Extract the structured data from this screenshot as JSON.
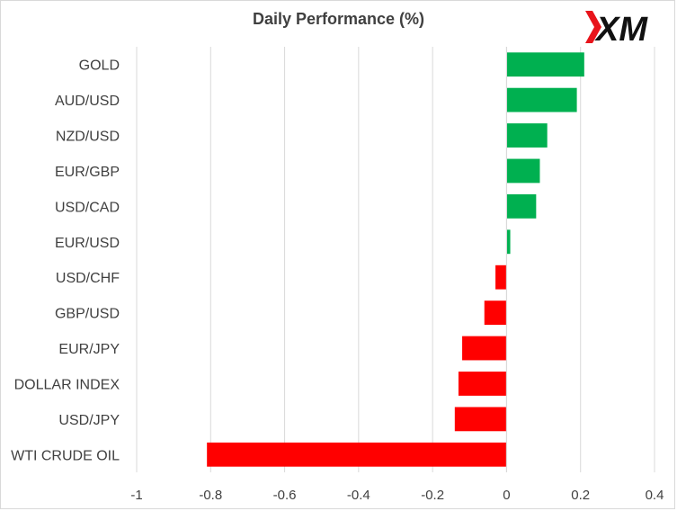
{
  "chart_data": {
    "type": "bar",
    "orientation": "horizontal",
    "title": "Daily Performance  (%)",
    "categories": [
      "GOLD",
      "AUD/USD",
      "NZD/USD",
      "EUR/GBP",
      "USD/CAD",
      "EUR/USD",
      "USD/CHF",
      "GBP/USD",
      "EUR/JPY",
      "DOLLAR INDEX",
      "USD/JPY",
      "WTI CRUDE OIL"
    ],
    "values": [
      0.21,
      0.19,
      0.11,
      0.09,
      0.08,
      0.01,
      -0.03,
      -0.06,
      -0.12,
      -0.13,
      -0.14,
      -0.81
    ],
    "xlim": [
      -1,
      0.4
    ],
    "xticks": [
      -1,
      -0.8,
      -0.6,
      -0.4,
      -0.2,
      0,
      0.2,
      0.4
    ],
    "xtick_labels": [
      "-1",
      "-0.8",
      "-0.6",
      "-0.4",
      "-0.2",
      "0",
      "0.2",
      "0.4"
    ],
    "grid": "vertical",
    "colors": {
      "positive": "#00b050",
      "negative": "#ff0000",
      "grid": "#d9d9d9",
      "text": "#404040"
    }
  },
  "logo": {
    "text": "XM",
    "colors": {
      "red": "#e8141b",
      "black": "#111111"
    }
  }
}
